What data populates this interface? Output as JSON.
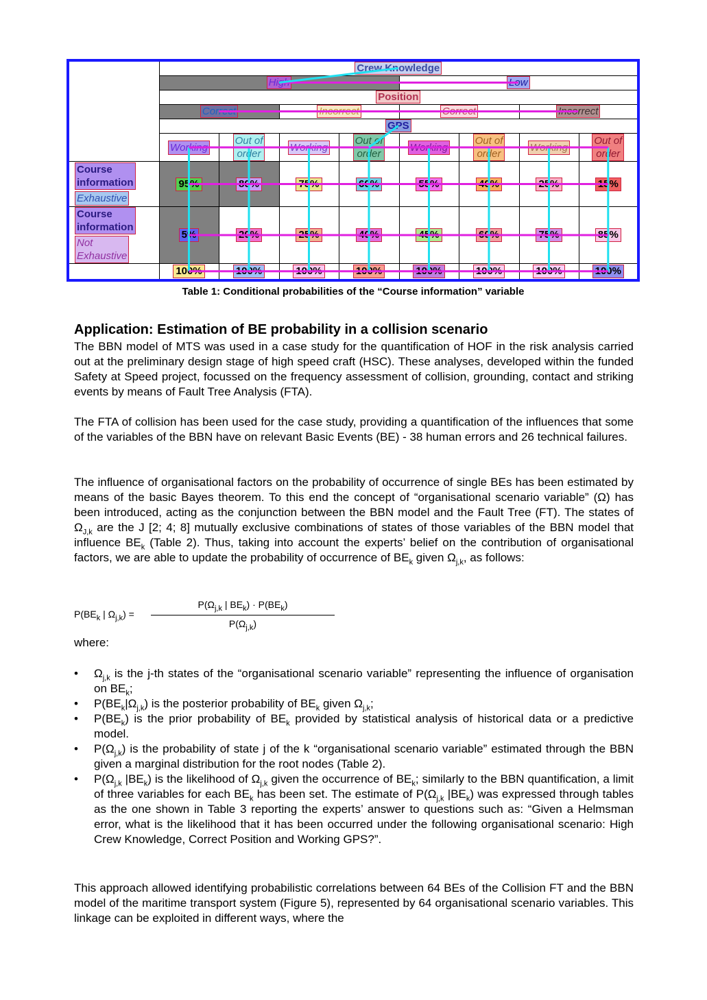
{
  "table": {
    "col_header_crew": "Crew Knowledge",
    "crew_levels": [
      "High",
      "Low"
    ],
    "col_header_position": "Position",
    "position_levels": [
      "Correct",
      "Incorrect",
      "Correct",
      "Incorrect"
    ],
    "col_header_gps": "GPS",
    "gps_levels": [
      {
        "l1": "Working",
        "l2": ""
      },
      {
        "l1": "Out of",
        "l2": "order"
      },
      {
        "l1": "Working",
        "l2": ""
      },
      {
        "l1": "Out of",
        "l2": "order"
      },
      {
        "l1": "Working",
        "l2": ""
      },
      {
        "l1": "Out of",
        "l2": "order"
      },
      {
        "l1": "Working",
        "l2": ""
      },
      {
        "l1": "Out of",
        "l2": "order"
      }
    ],
    "rows": [
      {
        "label_bold_1": "Course",
        "label_bold_2": "information",
        "label_italic_1": "Exhaustive",
        "label_italic_2": "",
        "values": [
          "95%",
          "80%",
          "75%",
          "60%",
          "55%",
          "40%",
          "25%",
          "15%"
        ]
      },
      {
        "label_bold_1": "Course",
        "label_bold_2": "information",
        "label_italic_1": "Not",
        "label_italic_2": "Exhaustive",
        "values": [
          "5%",
          "20%",
          "25%",
          "40%",
          "45%",
          "60%",
          "75%",
          "85%"
        ]
      }
    ],
    "totals": [
      "100%",
      "100%",
      "100%",
      "100%",
      "100%",
      "100%",
      "100%",
      "100%"
    ],
    "caption": "Table 1: Conditional probabilities of the “Course information” variable"
  },
  "heading": "Application: Estimation of BE probability in a collision scenario",
  "para1": "The BBN model of MTS was used in a case study for the quantification of HOF in the risk analysis carried out at the preliminary design stage of high speed craft (HSC).  These analyses, developed within the funded Safety at Speed project, focussed on the frequency assessment of collision, grounding, contact and striking events by means of Fault Tree Analysis (FTA).",
  "para2": "The FTA of collision has been used for the case study, providing a quantification of the influences that some of the variables of the BBN have on relevant Basic Events (BE) - 38 human errors and 26 technical failures.",
  "para3": {
    "t1": "The influence of organisational factors on the probability of occurrence of single BEs has been estimated by means of the basic Bayes theorem.  To this end the concept of “organisational scenario variable” (Ω) has been introduced, acting as the conjunction between the BBN model and the Fault Tree (FT).  The states of Ω",
    "s1": "J,k",
    "t2": " are the J [2; 4; 8] mutually exclusive combinations of states of those variables of the BBN model that influence BE",
    "s2": "k",
    "t3": " (Table 2). Thus, taking into account the experts’ belief on the contribution of organisational factors, we are able to update the probability of occurrence of BE",
    "s3": "k",
    "t4": " given Ω",
    "s4": "j,k",
    "t5": ", as follows:"
  },
  "formula": {
    "lhs_a": "P(BE",
    "lhs_s1": "k",
    "lhs_b": " | Ω",
    "lhs_s2": "j,k",
    "lhs_c": ") =",
    "num_a": "P(Ω",
    "num_s1": "j,k",
    "num_b": " | BE",
    "num_s2": "k",
    "num_c": ") · P(BE",
    "num_s3": "k",
    "num_d": ")",
    "den_a": "P(Ω",
    "den_s1": "j,k",
    "den_b": ")"
  },
  "where": "where:",
  "bullet_char": "•",
  "bullets": [
    {
      "t1": "Ω",
      "s1": "j,k",
      "t2": " is the j-th states of the “organisational scenario variable” representing the influence of organisation on BE",
      "s2": "k",
      "t3": ";"
    },
    {
      "t1": "P(BE",
      "s1": "k",
      "t2": "|Ω",
      "s2": "j,k",
      "t3": ") is the posterior probability of BE",
      "s3": "k",
      "t4": " given Ω",
      "s4": "j,k",
      "t5": ";"
    },
    {
      "t1": "P(BE",
      "s1": "k",
      "t2": ") is the prior probability of BE",
      "s2": "k",
      "t3": " provided by statistical analysis of historical data or a predictive model."
    },
    {
      "t1": "P(Ω",
      "s1": "j,k",
      "t2": ") is the probability of state j of the k “organisational scenario variable” estimated through the BBN given a marginal distribution for the root nodes (Table 2)."
    },
    {
      "t1": "P(Ω",
      "s1": "j,k",
      "t2": " |BE",
      "s2": "k",
      "t3": ") is the likelihood of Ω",
      "s3": "j,k",
      "t4": " given the occurrence of BE",
      "s4": "k",
      "t5": "; similarly to the BBN quantification, a limit of three variables for each BE",
      "s5": "k",
      "t6": " has been set.  The estimate of P(Ω",
      "s6": "j,k",
      "t7": " |BE",
      "s7": "k",
      "t8": ") was expressed through tables as the one shown in Table 3 reporting the experts’ answer to questions such as: “Given a Helmsman error, what is the likelihood that it has been occurred under the following organisational scenario: High Crew Knowledge, Correct Position and Working GPS?”."
    }
  ],
  "para4": "This approach allowed identifying probabilistic correlations between 64 BEs of the Collision FT and the BBN model of the maritime transport system (Figure 5), represented by 64 organisational scenario variables. This linkage can be exploited in different ways, where the"
}
